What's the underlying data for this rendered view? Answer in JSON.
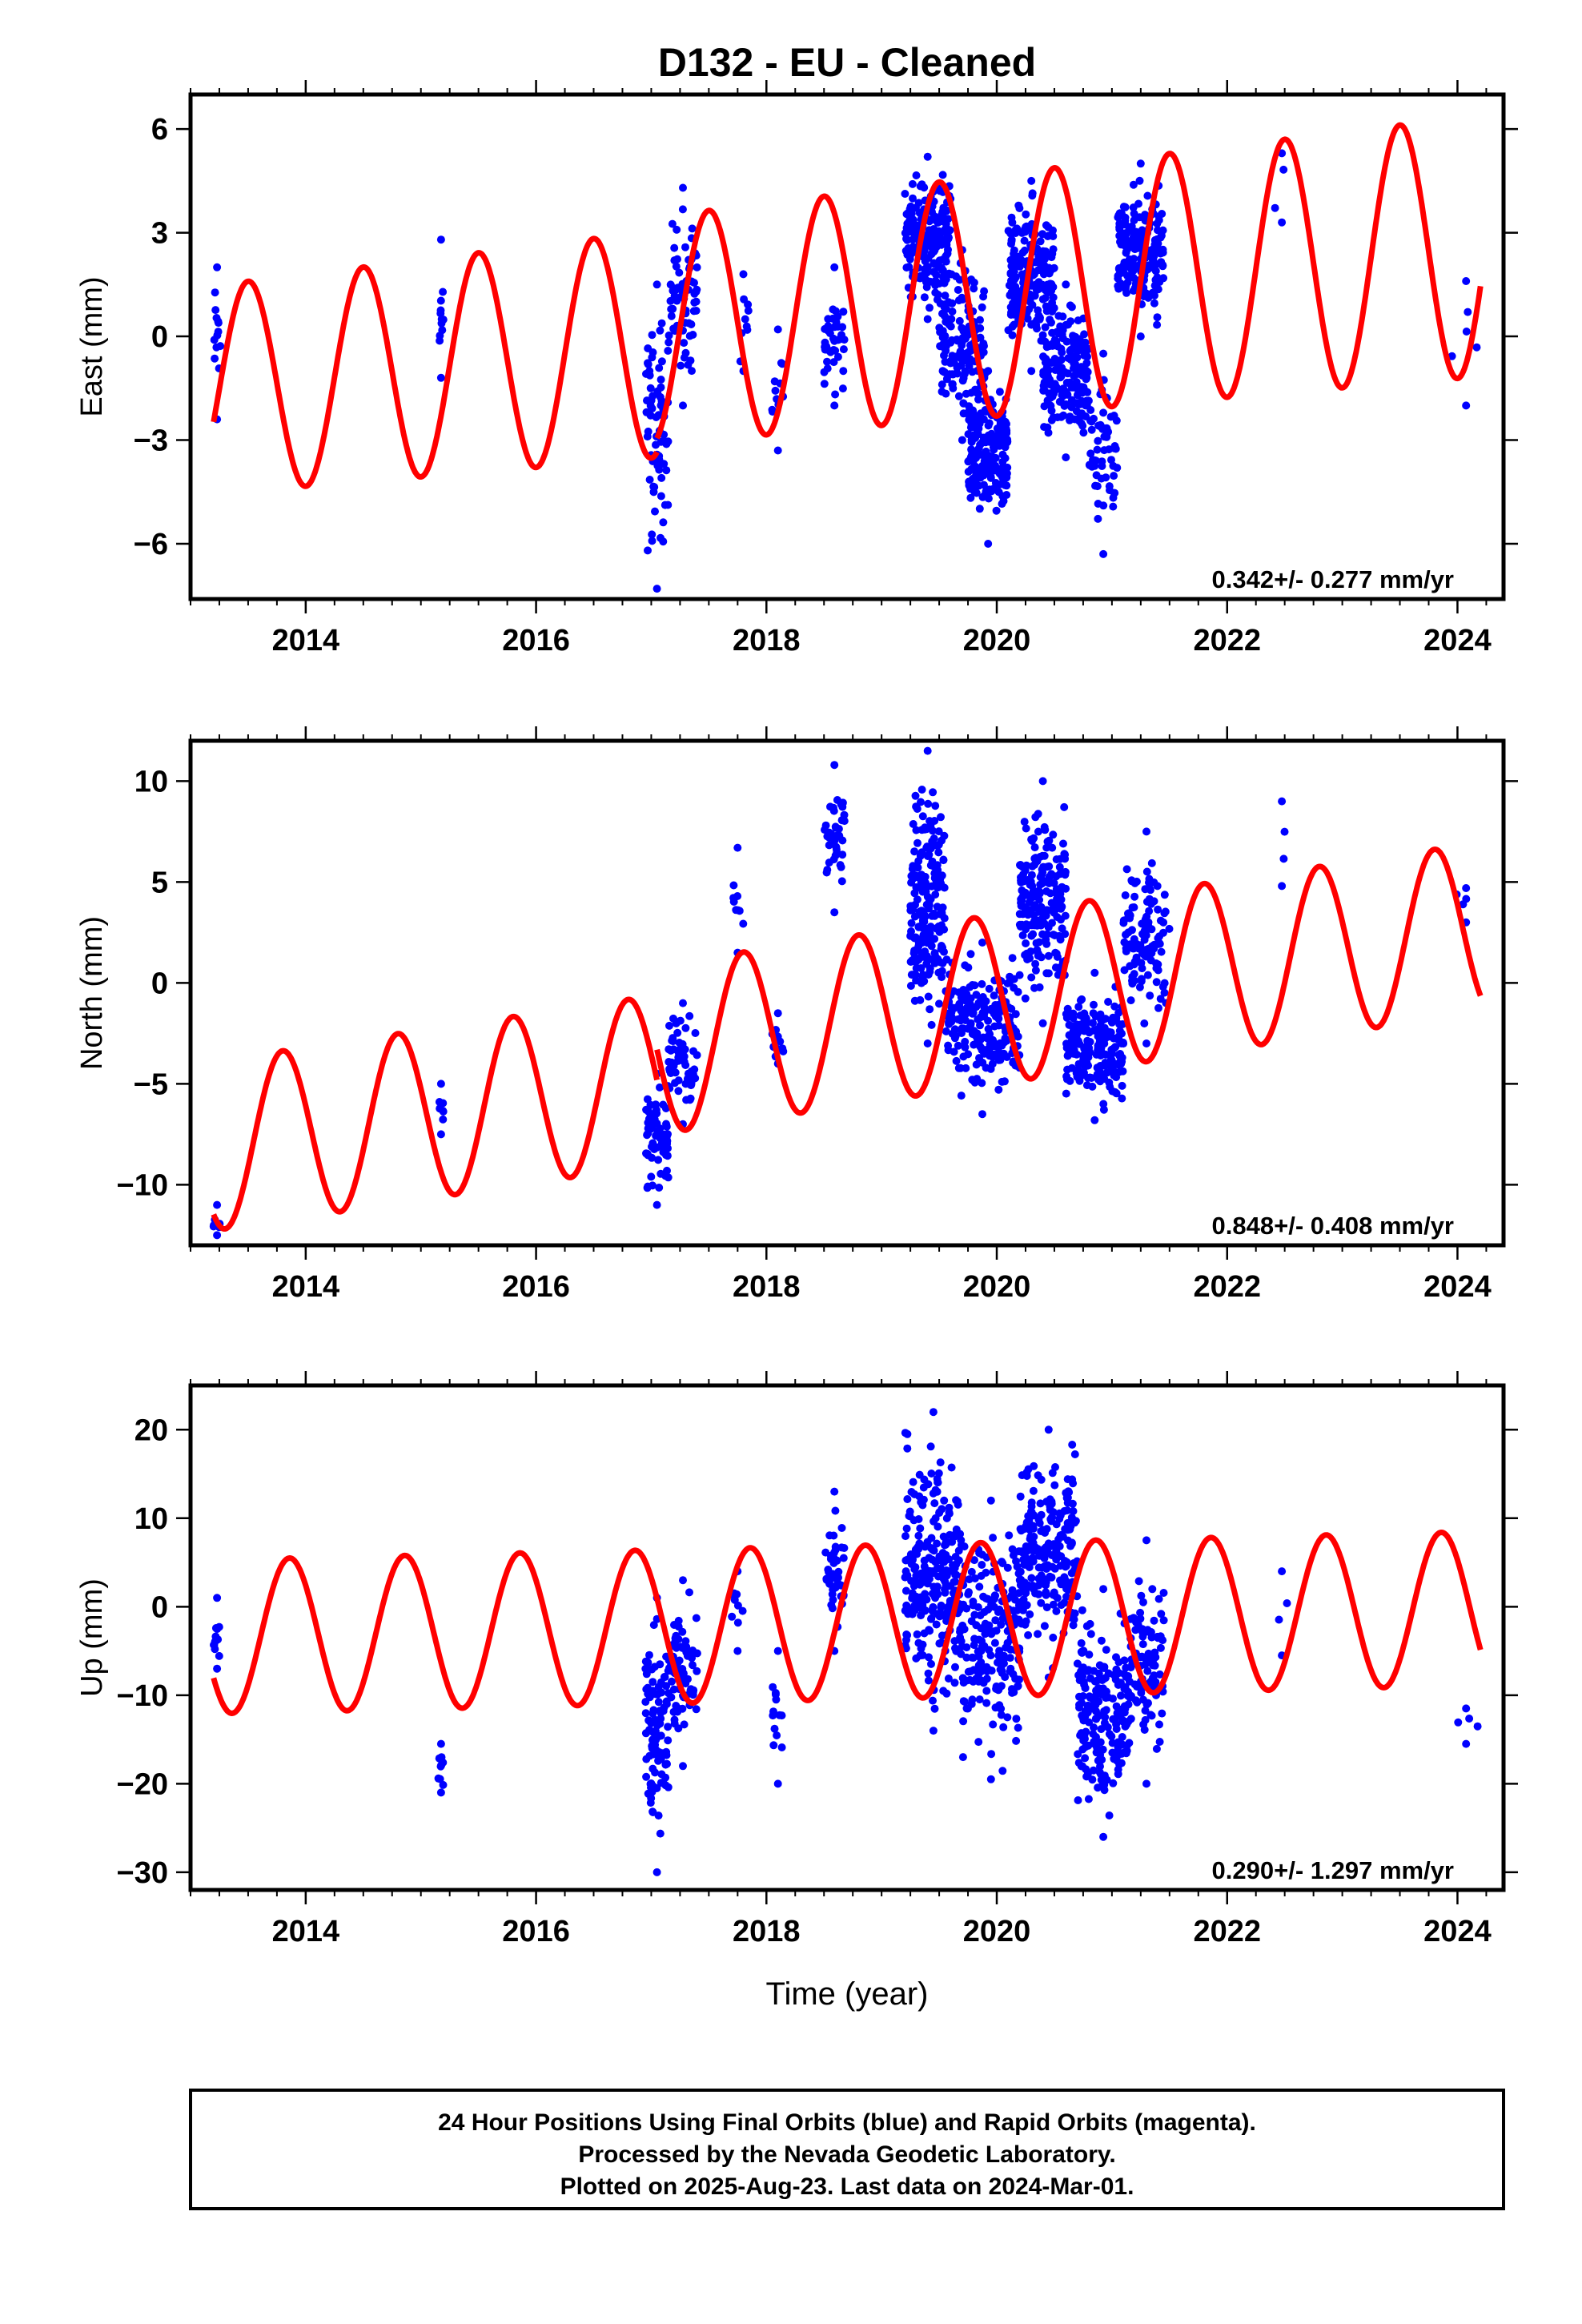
{
  "figure": {
    "title": "D132  - EU - Cleaned",
    "xlabel": "Time (year)",
    "footer_lines": [
      "24 Hour Positions Using Final Orbits (blue) and Rapid Orbits (magenta).",
      "Processed by the Nevada Geodetic Laboratory.",
      "Plotted on 2025-Aug-23. Last data on 2024-Mar-01."
    ],
    "colors": {
      "points": "#0000ff",
      "model": "#ff0000",
      "frame": "#000000"
    }
  },
  "chart_data": [
    {
      "type": "scatter",
      "panel": "east",
      "ylabel": "East (mm)",
      "xlim": [
        2013.0,
        2024.4
      ],
      "ylim": [
        -7.6,
        7.0
      ],
      "yticks": [
        6,
        3,
        0,
        -3,
        -6
      ],
      "xticks": [
        2014,
        2016,
        2018,
        2020,
        2022,
        2024
      ],
      "rate_label": "0.342+/- 0.277 mm/yr",
      "series": [
        {
          "kind": "points",
          "clusters": [
            {
              "x": [
                2013.2,
                2013.26
              ],
              "y": [
                -2.4,
                2.0
              ],
              "n": 12
            },
            {
              "x": [
                2015.15,
                2015.2
              ],
              "y": [
                -1.2,
                2.8
              ],
              "n": 10
            },
            {
              "x": [
                2016.95,
                2017.15
              ],
              "y": [
                -7.3,
                1.5
              ],
              "n": 70
            },
            {
              "x": [
                2017.15,
                2017.4
              ],
              "y": [
                -2.0,
                4.3
              ],
              "n": 70
            },
            {
              "x": [
                2017.75,
                2017.85
              ],
              "y": [
                -1.0,
                1.8
              ],
              "n": 8
            },
            {
              "x": [
                2018.05,
                2018.15
              ],
              "y": [
                -3.3,
                0.2
              ],
              "n": 10
            },
            {
              "x": [
                2018.5,
                2018.68
              ],
              "y": [
                -2.0,
                2.0
              ],
              "n": 40
            },
            {
              "x": [
                2019.2,
                2019.6
              ],
              "y": [
                0.5,
                5.2
              ],
              "n": 200
            },
            {
              "x": [
                2019.5,
                2019.9
              ],
              "y": [
                -3.0,
                2.5
              ],
              "n": 150
            },
            {
              "x": [
                2019.75,
                2020.1
              ],
              "y": [
                -6.0,
                -1.0
              ],
              "n": 200
            },
            {
              "x": [
                2020.1,
                2020.5
              ],
              "y": [
                -1.0,
                4.5
              ],
              "n": 200
            },
            {
              "x": [
                2020.4,
                2020.8
              ],
              "y": [
                -3.5,
                1.5
              ],
              "n": 200
            },
            {
              "x": [
                2020.8,
                2021.05
              ],
              "y": [
                -6.3,
                -0.5
              ],
              "n": 60
            },
            {
              "x": [
                2021.05,
                2021.45
              ],
              "y": [
                0.0,
                5.0
              ],
              "n": 180
            },
            {
              "x": [
                2022.4,
                2022.55
              ],
              "y": [
                3.3,
                5.3
              ],
              "n": 2
            },
            {
              "x": [
                2023.95,
                2024.2
              ],
              "y": [
                -2.0,
                1.6
              ],
              "n": 4
            }
          ]
        },
        {
          "kind": "model",
          "offset": 0.5,
          "rate": 0.342,
          "annual_amp": 3.0,
          "annual_phase_year": 0.25,
          "amp_trend": 0.07,
          "segments": [
            [
              2013.2,
              2017.05,
              -0.4
            ],
            [
              2017.05,
              2024.2,
              0.0
            ]
          ]
        }
      ]
    },
    {
      "type": "scatter",
      "panel": "north",
      "ylabel": "North (mm)",
      "xlim": [
        2013.0,
        2024.4
      ],
      "ylim": [
        -13.0,
        12.0
      ],
      "yticks": [
        10,
        5,
        0,
        -5,
        -10
      ],
      "xticks": [
        2014,
        2016,
        2018,
        2020,
        2022,
        2024
      ],
      "rate_label": "0.848+/- 0.408 mm/yr",
      "series": [
        {
          "kind": "points",
          "clusters": [
            {
              "x": [
                2013.2,
                2013.26
              ],
              "y": [
                -12.5,
                -11.0
              ],
              "n": 6
            },
            {
              "x": [
                2015.15,
                2015.2
              ],
              "y": [
                -7.5,
                -5.0
              ],
              "n": 6
            },
            {
              "x": [
                2016.95,
                2017.15
              ],
              "y": [
                -11.0,
                -4.5
              ],
              "n": 70
            },
            {
              "x": [
                2017.15,
                2017.4
              ],
              "y": [
                -7.0,
                -1.0
              ],
              "n": 60
            },
            {
              "x": [
                2017.7,
                2017.8
              ],
              "y": [
                1.5,
                6.7
              ],
              "n": 8
            },
            {
              "x": [
                2018.05,
                2018.15
              ],
              "y": [
                -4.0,
                -1.5
              ],
              "n": 10
            },
            {
              "x": [
                2018.5,
                2018.68
              ],
              "y": [
                3.5,
                10.8
              ],
              "n": 40
            },
            {
              "x": [
                2019.25,
                2019.55
              ],
              "y": [
                -3.0,
                11.5
              ],
              "n": 200
            },
            {
              "x": [
                2019.55,
                2020.2
              ],
              "y": [
                -6.5,
                2.0
              ],
              "n": 200
            },
            {
              "x": [
                2020.2,
                2020.6
              ],
              "y": [
                -2.0,
                10.0
              ],
              "n": 200
            },
            {
              "x": [
                2020.6,
                2021.1
              ],
              "y": [
                -6.8,
                0.5
              ],
              "n": 200
            },
            {
              "x": [
                2021.1,
                2021.5
              ],
              "y": [
                -3.0,
                7.5
              ],
              "n": 120
            },
            {
              "x": [
                2022.4,
                2022.55
              ],
              "y": [
                4.8,
                9.0
              ],
              "n": 2
            },
            {
              "x": [
                2023.95,
                2024.2
              ],
              "y": [
                3.0,
                4.7
              ],
              "n": 3
            }
          ]
        },
        {
          "kind": "model",
          "offset": -2.5,
          "rate": 0.848,
          "annual_amp": 4.2,
          "annual_phase_year": 0.55,
          "amp_trend": 0.0,
          "segments": [
            [
              2013.2,
              2017.05,
              -1.5
            ],
            [
              2017.05,
              2024.2,
              0.0
            ]
          ]
        }
      ]
    },
    {
      "type": "scatter",
      "panel": "up",
      "ylabel": "Up (mm)",
      "xlim": [
        2013.0,
        2024.4
      ],
      "ylim": [
        -32.0,
        25.0
      ],
      "yticks": [
        20,
        10,
        0,
        -10,
        -20,
        -30
      ],
      "xticks": [
        2014,
        2016,
        2018,
        2020,
        2022,
        2024
      ],
      "rate_label": "0.290+/- 1.297 mm/yr",
      "series": [
        {
          "kind": "points",
          "clusters": [
            {
              "x": [
                2013.2,
                2013.26
              ],
              "y": [
                -7.0,
                1.0
              ],
              "n": 10
            },
            {
              "x": [
                2015.15,
                2015.2
              ],
              "y": [
                -21.0,
                -15.5
              ],
              "n": 8
            },
            {
              "x": [
                2016.95,
                2017.15
              ],
              "y": [
                -30.0,
                1.0
              ],
              "n": 100
            },
            {
              "x": [
                2017.15,
                2017.4
              ],
              "y": [
                -18.0,
                3.0
              ],
              "n": 70
            },
            {
              "x": [
                2017.7,
                2017.8
              ],
              "y": [
                -5.0,
                4.0
              ],
              "n": 8
            },
            {
              "x": [
                2018.05,
                2018.15
              ],
              "y": [
                -20.0,
                -5.0
              ],
              "n": 12
            },
            {
              "x": [
                2018.5,
                2018.68
              ],
              "y": [
                -5.0,
                13.0
              ],
              "n": 40
            },
            {
              "x": [
                2019.2,
                2019.7
              ],
              "y": [
                -14.0,
                22.0
              ],
              "n": 250
            },
            {
              "x": [
                2019.7,
                2020.2
              ],
              "y": [
                -19.5,
                12.0
              ],
              "n": 200
            },
            {
              "x": [
                2020.2,
                2020.7
              ],
              "y": [
                -8.0,
                20.0
              ],
              "n": 220
            },
            {
              "x": [
                2020.7,
                2021.15
              ],
              "y": [
                -26.0,
                2.0
              ],
              "n": 200
            },
            {
              "x": [
                2021.15,
                2021.45
              ],
              "y": [
                -20.0,
                7.5
              ],
              "n": 100
            },
            {
              "x": [
                2022.4,
                2022.55
              ],
              "y": [
                -5.5,
                4.0
              ],
              "n": 2
            },
            {
              "x": [
                2023.95,
                2024.2
              ],
              "y": [
                -15.5,
                -11.5
              ],
              "n": 3
            }
          ]
        },
        {
          "kind": "model",
          "offset": -2.0,
          "rate": 0.29,
          "annual_amp": 8.7,
          "annual_phase_year": 0.61,
          "amp_trend": 0.0,
          "segments": [
            [
              2013.2,
              2024.2,
              0.0
            ]
          ]
        }
      ]
    }
  ]
}
